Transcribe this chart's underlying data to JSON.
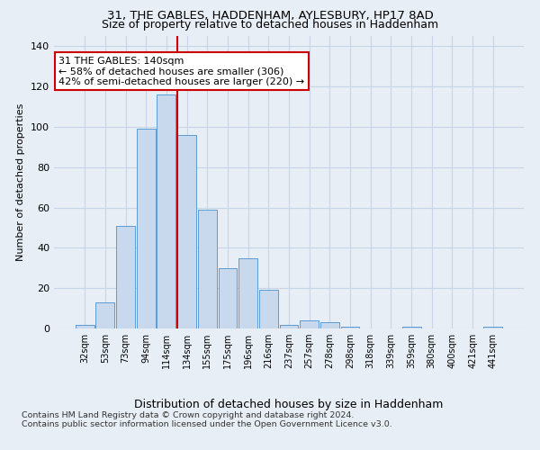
{
  "title_line1": "31, THE GABLES, HADDENHAM, AYLESBURY, HP17 8AD",
  "title_line2": "Size of property relative to detached houses in Haddenham",
  "xlabel": "Distribution of detached houses by size in Haddenham",
  "ylabel": "Number of detached properties",
  "footer_line1": "Contains HM Land Registry data © Crown copyright and database right 2024.",
  "footer_line2": "Contains public sector information licensed under the Open Government Licence v3.0.",
  "bar_labels": [
    "32sqm",
    "53sqm",
    "73sqm",
    "94sqm",
    "114sqm",
    "134sqm",
    "155sqm",
    "175sqm",
    "196sqm",
    "216sqm",
    "237sqm",
    "257sqm",
    "278sqm",
    "298sqm",
    "318sqm",
    "339sqm",
    "359sqm",
    "380sqm",
    "400sqm",
    "421sqm",
    "441sqm"
  ],
  "bar_values": [
    2,
    13,
    51,
    99,
    116,
    96,
    59,
    30,
    35,
    19,
    2,
    4,
    3,
    1,
    0,
    0,
    1,
    0,
    0,
    0,
    1
  ],
  "bar_color": "#c8d9ed",
  "bar_edgecolor": "#5b9bd5",
  "annotation_line1": "31 THE GABLES: 140sqm",
  "annotation_line2": "← 58% of detached houses are smaller (306)",
  "annotation_line3": "42% of semi-detached houses are larger (220) →",
  "annotation_box_facecolor": "#ffffff",
  "annotation_box_edgecolor": "#cc0000",
  "vline_color": "#cc0000",
  "vline_x_index": 4.52,
  "ylim": [
    0,
    145
  ],
  "yticks": [
    0,
    20,
    40,
    60,
    80,
    100,
    120,
    140
  ],
  "grid_color": "#c8d4e8",
  "background_color": "#e8eef5",
  "plot_bg_color": "#e8eef5",
  "title1_fontsize": 9.5,
  "title2_fontsize": 9.0,
  "ylabel_fontsize": 8.0,
  "xlabel_fontsize": 9.0,
  "tick_fontsize": 7.0,
  "annotation_fontsize": 8.0,
  "footer_fontsize": 6.8
}
